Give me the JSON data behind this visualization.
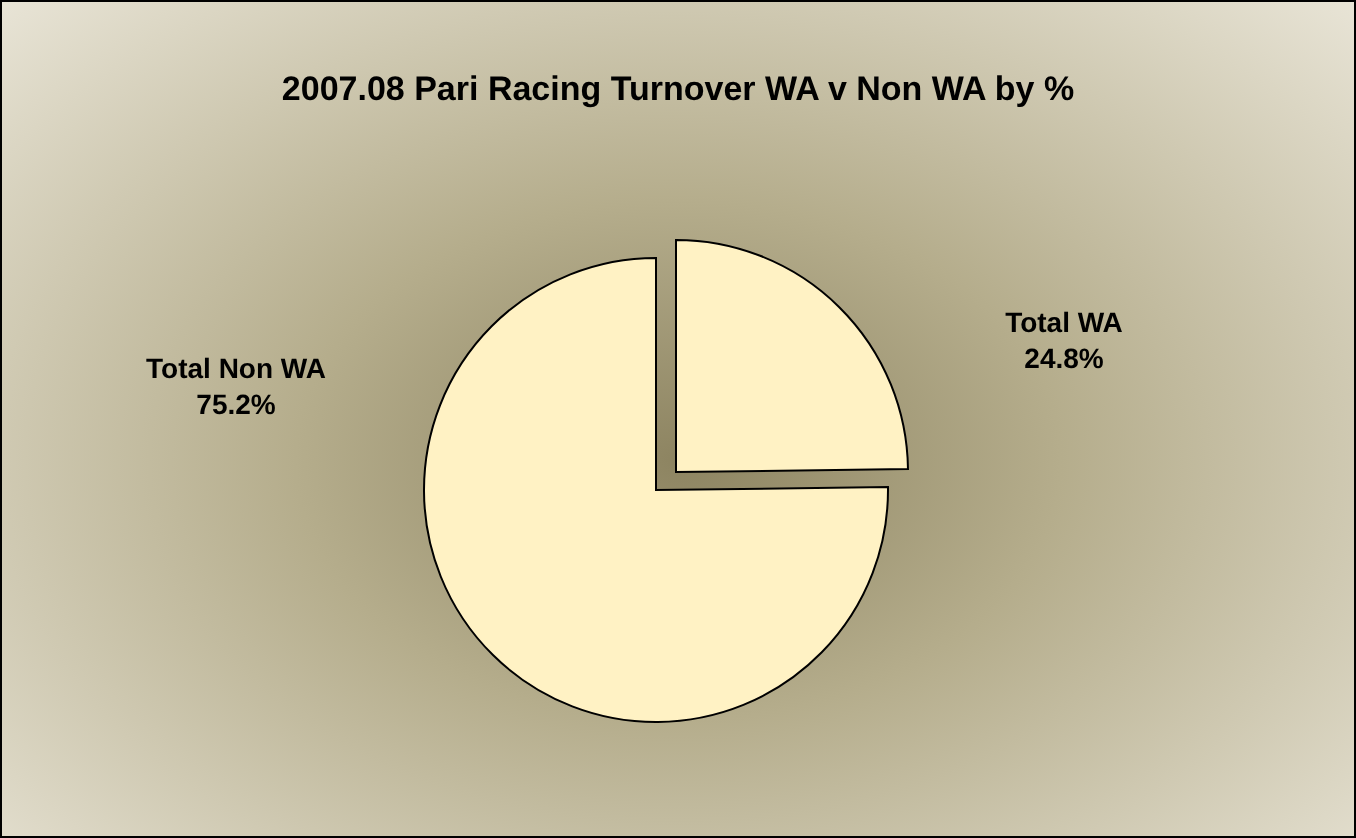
{
  "chart_data": {
    "type": "pie",
    "title": "2007.08 Pari Racing Turnover WA v Non WA by %",
    "categories": [
      "Total WA",
      "Total Non WA"
    ],
    "values": [
      24.8,
      75.2
    ],
    "colors": [
      "#fff2c4",
      "#fff2c4"
    ],
    "value_labels": [
      "24.8%",
      "75.2%"
    ]
  }
}
